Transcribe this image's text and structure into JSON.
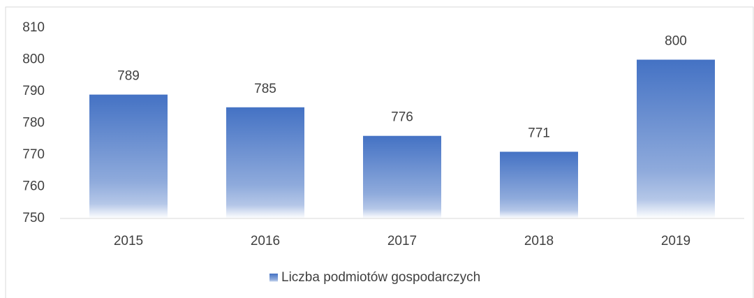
{
  "chart_data": {
    "type": "bar",
    "categories": [
      "2015",
      "2016",
      "2017",
      "2018",
      "2019"
    ],
    "series": [
      {
        "name": "Liczba podmiotów gospodarczych",
        "color": "#4472c4",
        "values": [
          789,
          785,
          776,
          771,
          800
        ]
      }
    ],
    "ylim": [
      750,
      810
    ],
    "yticks": [
      750,
      760,
      770,
      780,
      790,
      800,
      810
    ],
    "grid": false,
    "legend": "bottom"
  }
}
